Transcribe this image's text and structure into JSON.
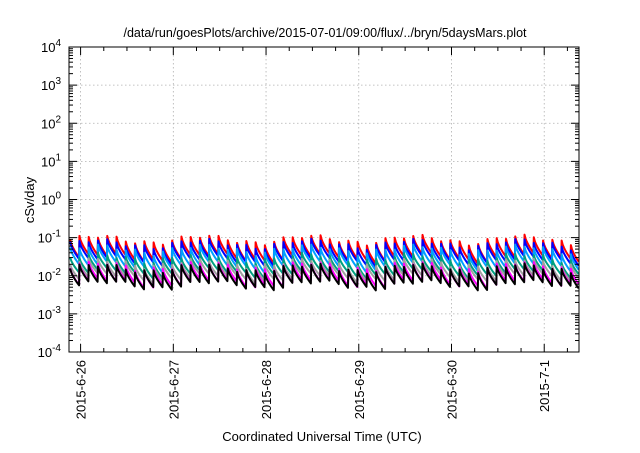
{
  "chart_data": {
    "type": "line",
    "title": "/data/run/goesPlots/archive/2015-07-01/09:00/flux/../bryn/5daysMars.plot",
    "xlabel": "Coordinated Universal Time (UTC)",
    "ylabel": "cSv/day",
    "yscale": "log",
    "ylim": [
      0.0001,
      10000
    ],
    "xlim": [
      "2015-06-25T21:00",
      "2015-07-01T09:00"
    ],
    "grid": true,
    "x_ticks": [
      "2015-6-26",
      "2015-6-27",
      "2015-6-28",
      "2015-6-29",
      "2015-6-30",
      "2015-7-1"
    ],
    "y_ticks": [
      {
        "mantissa": "10",
        "exp": "-4"
      },
      {
        "mantissa": "10",
        "exp": "-3"
      },
      {
        "mantissa": "10",
        "exp": "-2"
      },
      {
        "mantissa": "10",
        "exp": "-1"
      },
      {
        "mantissa": "10",
        "exp": "0"
      },
      {
        "mantissa": "10",
        "exp": "1"
      },
      {
        "mantissa": "10",
        "exp": "2"
      },
      {
        "mantissa": "10",
        "exp": "3"
      },
      {
        "mantissa": "10",
        "exp": "4"
      }
    ],
    "sawtooth_period_hours": 2.4,
    "series": [
      {
        "color": "#ff0000",
        "peak": 0.09,
        "trough": 0.03
      },
      {
        "color": "#0000ff",
        "peak": 0.07,
        "trough": 0.025
      },
      {
        "color": "#00a0ff",
        "peak": 0.05,
        "trough": 0.018
      },
      {
        "color": "#00a080",
        "peak": 0.03,
        "trough": 0.012
      },
      {
        "color": "#a0a0a0",
        "peak": 0.022,
        "trough": 0.009
      },
      {
        "color": "#ff00ff",
        "peak": 0.018,
        "trough": 0.0065
      },
      {
        "color": "#000000",
        "peak": 0.016,
        "trough": 0.0058
      }
    ]
  }
}
